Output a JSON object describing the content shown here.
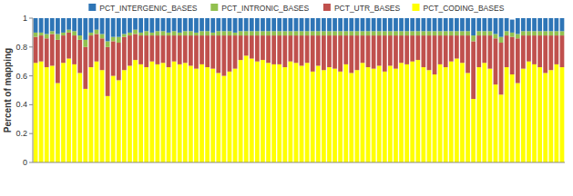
{
  "chart_data": {
    "type": "bar",
    "stacked": true,
    "y_label": "Percent of mapping",
    "categories": [
      null,
      null,
      null,
      null,
      null,
      null,
      null,
      null,
      null,
      null,
      null,
      null,
      null,
      null,
      null,
      null,
      null,
      null,
      null,
      null,
      null,
      null,
      null,
      null,
      null,
      null,
      null,
      null,
      null,
      null,
      null,
      null,
      null,
      null,
      null,
      null,
      null,
      null,
      null,
      null,
      null,
      null,
      null,
      null,
      null,
      null,
      null,
      null,
      null,
      null,
      null,
      null,
      null,
      null,
      null,
      null,
      null,
      null,
      null,
      null,
      null,
      null,
      null,
      null,
      null,
      null,
      null,
      null,
      null,
      null,
      null,
      null,
      null,
      null,
      null,
      null,
      null,
      null,
      null,
      null,
      null,
      null,
      null,
      null,
      null,
      null,
      null,
      null,
      null,
      null,
      null,
      null,
      null,
      null,
      null,
      null
    ],
    "ylim": [
      0,
      1
    ],
    "yticks": [
      0,
      0.2,
      0.4,
      0.6,
      0.8,
      1
    ],
    "grid": false,
    "legend": "top",
    "tick_labels": "y",
    "series": [
      {
        "name": "PCT_CODING_BASES",
        "color": "#ffff00",
        "values": [
          0.69,
          0.7,
          0.66,
          0.67,
          0.55,
          0.69,
          0.72,
          0.68,
          0.62,
          0.51,
          0.66,
          0.7,
          0.64,
          0.46,
          0.6,
          0.57,
          0.64,
          0.67,
          0.71,
          0.68,
          0.66,
          0.7,
          0.68,
          0.69,
          0.66,
          0.7,
          0.68,
          0.69,
          0.67,
          0.65,
          0.68,
          0.66,
          0.65,
          0.62,
          0.6,
          0.63,
          0.65,
          0.71,
          0.74,
          0.72,
          0.7,
          0.71,
          0.69,
          0.68,
          0.68,
          0.66,
          0.7,
          0.69,
          0.67,
          0.69,
          0.63,
          0.67,
          0.64,
          0.66,
          0.65,
          0.63,
          0.68,
          0.62,
          0.64,
          0.69,
          0.66,
          0.65,
          0.67,
          0.63,
          0.67,
          0.65,
          0.69,
          0.68,
          0.7,
          0.71,
          0.66,
          0.64,
          0.61,
          0.68,
          0.66,
          0.7,
          0.72,
          0.69,
          0.62,
          0.44,
          0.66,
          0.69,
          0.65,
          0.54,
          0.47,
          0.66,
          0.61,
          0.55,
          0.65,
          0.7,
          0.68,
          0.66,
          0.62,
          0.64,
          0.68,
          0.66
        ]
      },
      {
        "name": "PCT_UTR_BASES",
        "color": "#c0504d",
        "values": [
          0.18,
          0.18,
          0.2,
          0.22,
          0.3,
          0.19,
          0.18,
          0.2,
          0.23,
          0.29,
          0.22,
          0.19,
          0.22,
          0.34,
          0.24,
          0.26,
          0.23,
          0.21,
          0.18,
          0.2,
          0.22,
          0.18,
          0.2,
          0.19,
          0.22,
          0.18,
          0.2,
          0.19,
          0.21,
          0.23,
          0.2,
          0.22,
          0.23,
          0.26,
          0.28,
          0.25,
          0.23,
          0.17,
          0.14,
          0.16,
          0.18,
          0.17,
          0.19,
          0.2,
          0.2,
          0.22,
          0.18,
          0.19,
          0.21,
          0.19,
          0.25,
          0.21,
          0.24,
          0.22,
          0.23,
          0.25,
          0.2,
          0.26,
          0.24,
          0.19,
          0.22,
          0.23,
          0.21,
          0.25,
          0.21,
          0.23,
          0.19,
          0.2,
          0.18,
          0.17,
          0.22,
          0.24,
          0.27,
          0.2,
          0.22,
          0.18,
          0.16,
          0.19,
          0.26,
          0.4,
          0.22,
          0.19,
          0.23,
          0.32,
          0.36,
          0.22,
          0.26,
          0.31,
          0.23,
          0.18,
          0.2,
          0.22,
          0.26,
          0.24,
          0.2,
          0.22
        ]
      },
      {
        "name": "PCT_INTRONIC_BASES",
        "color": "#92c050",
        "values": [
          0.03,
          0.02,
          0.03,
          0.02,
          0.04,
          0.02,
          0.02,
          0.03,
          0.03,
          0.05,
          0.02,
          0.03,
          0.03,
          0.04,
          0.03,
          0.04,
          0.02,
          0.02,
          0.03,
          0.02,
          0.03,
          0.02,
          0.03,
          0.03,
          0.02,
          0.03,
          0.02,
          0.03,
          0.03,
          0.02,
          0.03,
          0.03,
          0.02,
          0.03,
          0.03,
          0.03,
          0.02,
          0.03,
          0.03,
          0.03,
          0.03,
          0.03,
          0.03,
          0.03,
          0.03,
          0.03,
          0.03,
          0.03,
          0.03,
          0.03,
          0.03,
          0.03,
          0.03,
          0.03,
          0.03,
          0.03,
          0.03,
          0.03,
          0.03,
          0.03,
          0.03,
          0.03,
          0.03,
          0.03,
          0.03,
          0.03,
          0.03,
          0.03,
          0.03,
          0.03,
          0.03,
          0.03,
          0.03,
          0.03,
          0.03,
          0.03,
          0.03,
          0.03,
          0.03,
          0.04,
          0.03,
          0.03,
          0.03,
          0.03,
          0.04,
          0.03,
          0.03,
          0.03,
          0.03,
          0.03,
          0.03,
          0.03,
          0.03,
          0.03,
          0.03,
          0.03
        ]
      },
      {
        "name": "PCT_INTERGENIC_BASES",
        "color": "#2e75b6",
        "values": [
          0.1,
          0.1,
          0.11,
          0.09,
          0.11,
          0.1,
          0.08,
          0.09,
          0.12,
          0.15,
          0.1,
          0.08,
          0.11,
          0.16,
          0.13,
          0.13,
          0.11,
          0.1,
          0.08,
          0.1,
          0.09,
          0.1,
          0.09,
          0.09,
          0.1,
          0.09,
          0.1,
          0.09,
          0.09,
          0.1,
          0.09,
          0.09,
          0.1,
          0.09,
          0.09,
          0.09,
          0.1,
          0.09,
          0.09,
          0.09,
          0.09,
          0.09,
          0.09,
          0.09,
          0.09,
          0.09,
          0.09,
          0.09,
          0.09,
          0.09,
          0.09,
          0.09,
          0.09,
          0.09,
          0.09,
          0.09,
          0.09,
          0.09,
          0.09,
          0.09,
          0.09,
          0.09,
          0.09,
          0.09,
          0.09,
          0.09,
          0.09,
          0.09,
          0.09,
          0.09,
          0.09,
          0.09,
          0.09,
          0.09,
          0.09,
          0.09,
          0.09,
          0.09,
          0.09,
          0.12,
          0.09,
          0.09,
          0.09,
          0.11,
          0.13,
          0.09,
          0.09,
          0.11,
          0.09,
          0.09,
          0.09,
          0.09,
          0.09,
          0.09,
          0.09,
          0.09
        ]
      }
    ]
  }
}
